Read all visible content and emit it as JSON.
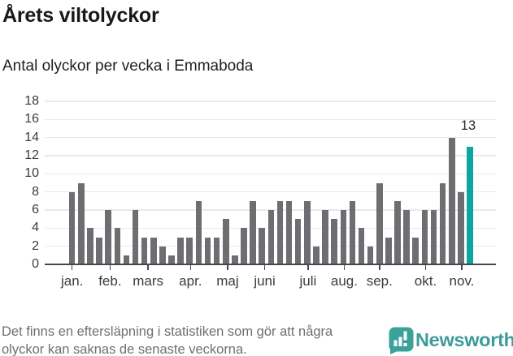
{
  "header": {
    "title": "Årets viltolyckor",
    "subtitle": "Antal olyckor per vecka i Emmaboda"
  },
  "chart_data": {
    "type": "bar",
    "title": "Årets viltolyckor",
    "subtitle": "Antal olyckor per vecka i Emmaboda",
    "x_unit": "vecka",
    "first_week": 1,
    "values": [
      8,
      9,
      4,
      3,
      6,
      4,
      1,
      6,
      3,
      3,
      2,
      1,
      3,
      3,
      7,
      3,
      3,
      5,
      1,
      4,
      7,
      4,
      6,
      7,
      7,
      5,
      7,
      2,
      6,
      5,
      6,
      7,
      4,
      2,
      9,
      3,
      7,
      6,
      3,
      6,
      6,
      9,
      14,
      8,
      13
    ],
    "highlight_last": true,
    "annotation": {
      "text": "13",
      "week": 45
    },
    "ylim": [
      0,
      18
    ],
    "y_ticks": [
      0,
      2,
      4,
      6,
      8,
      10,
      12,
      14,
      16,
      18
    ],
    "x_month_ticks": [
      {
        "label": "jan.",
        "week": 1.0
      },
      {
        "label": "feb.",
        "week": 5.2
      },
      {
        "label": "mars",
        "week": 9.4
      },
      {
        "label": "apr.",
        "week": 14.1
      },
      {
        "label": "maj",
        "week": 18.2
      },
      {
        "label": "juni",
        "week": 22.3
      },
      {
        "label": "juli",
        "week": 27.1
      },
      {
        "label": "aug.",
        "week": 31.1
      },
      {
        "label": "sep.",
        "week": 35.0
      },
      {
        "label": "okt.",
        "week": 40.1
      },
      {
        "label": "nov.",
        "week": 44.1
      }
    ],
    "grid": "horizontal",
    "legend": "none",
    "colors": {
      "bar": "#6e6d72",
      "highlight": "#0ca6a0",
      "gridline": "#e9e9e9",
      "axis": "#48484c",
      "tick_label": "#3c3c3c",
      "annotation": "#2b2b2b"
    }
  },
  "footer": {
    "note_lines": [
      "Det finns en eftersläpning i statistiken som gör att några",
      "olyckor kan saknas de senaste veckorna."
    ],
    "brand": "Newsworthy"
  },
  "brand_colors": {
    "wordmark": "#3e9b97",
    "logo_mark": "#3aa19b"
  }
}
